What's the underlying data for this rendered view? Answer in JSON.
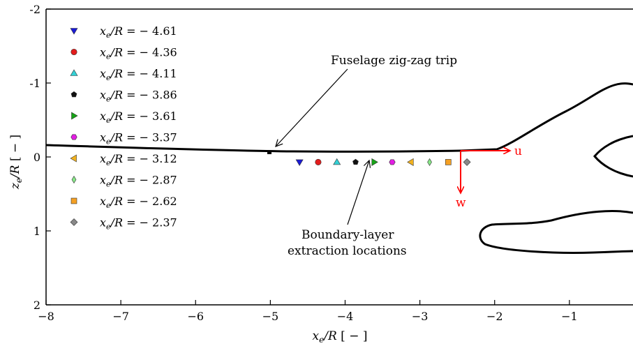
{
  "chart_data": {
    "type": "scatter",
    "xlabel": "x_e/R [ − ]",
    "ylabel": "z_e/R [ − ]",
    "xlim": [
      -8,
      0
    ],
    "ylim": [
      2,
      -2
    ],
    "y_inverted": true,
    "x_ticks": [
      "−8",
      "−7",
      "−6",
      "−5",
      "−4",
      "−3",
      "−2",
      "−1",
      "0"
    ],
    "y_ticks": [
      "-2",
      "-1",
      "0",
      "1",
      "2"
    ],
    "grid": false,
    "legend_position": "upper-left",
    "series": [
      {
        "name": "x_e/R = − 4.61",
        "x": -4.61,
        "z": 0.07,
        "marker": "triangle-down",
        "color": "#1a1ad6"
      },
      {
        "name": "x_e/R = − 4.36",
        "x": -4.36,
        "z": 0.07,
        "marker": "circle",
        "color": "#e21d1d"
      },
      {
        "name": "x_e/R = − 4.11",
        "x": -4.11,
        "z": 0.07,
        "marker": "triangle-up",
        "color": "#33d1d6"
      },
      {
        "name": "x_e/R = − 3.86",
        "x": -3.86,
        "z": 0.07,
        "marker": "pentagon",
        "color": "#111111"
      },
      {
        "name": "x_e/R = − 3.61",
        "x": -3.61,
        "z": 0.07,
        "marker": "triangle-right",
        "color": "#17a317"
      },
      {
        "name": "x_e/R = − 3.37",
        "x": -3.37,
        "z": 0.07,
        "marker": "hexagon",
        "color": "#e21de2"
      },
      {
        "name": "x_e/R = − 3.12",
        "x": -3.12,
        "z": 0.07,
        "marker": "triangle-left",
        "color": "#f2b21f"
      },
      {
        "name": "x_e/R = − 2.87",
        "x": -2.87,
        "z": 0.07,
        "marker": "thin-diamond",
        "color": "#88e888"
      },
      {
        "name": "x_e/R = − 2.62",
        "x": -2.62,
        "z": 0.07,
        "marker": "square",
        "color": "#f5a023"
      },
      {
        "name": "x_e/R = − 2.37",
        "x": -2.37,
        "z": 0.07,
        "marker": "diamond",
        "color": "#888888"
      }
    ],
    "annotations": [
      {
        "text": "Fuselage zig-zag trip",
        "points_to_x": -4.95,
        "points_to_z": 0.1
      },
      {
        "text_lines": [
          "Boundary-layer",
          "extraction locations"
        ],
        "points_to_x": -3.6,
        "points_to_z": 0.1
      }
    ],
    "vector_labels": {
      "u": "u",
      "w": "w",
      "color": "#ff0000"
    }
  }
}
